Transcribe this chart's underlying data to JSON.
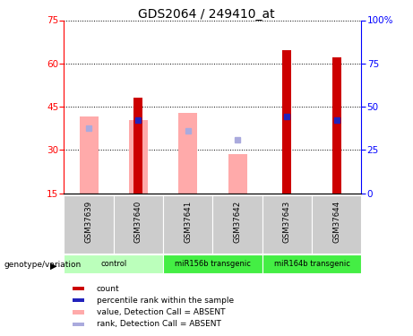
{
  "title": "GDS2064 / 249410_at",
  "samples": [
    "GSM37639",
    "GSM37640",
    "GSM37641",
    "GSM37642",
    "GSM37643",
    "GSM37644"
  ],
  "red_bars": [
    null,
    48.0,
    null,
    null,
    64.5,
    62.0
  ],
  "blue_squares": [
    null,
    40.5,
    null,
    null,
    41.5,
    40.5
  ],
  "pink_bars": [
    41.5,
    40.5,
    43.0,
    28.5,
    null,
    null
  ],
  "light_blue_squares": [
    37.5,
    null,
    36.5,
    33.5,
    null,
    null
  ],
  "ylim_left": [
    15,
    75
  ],
  "ylim_right": [
    0,
    100
  ],
  "yticks_left": [
    15,
    30,
    45,
    60,
    75
  ],
  "yticks_right": [
    0,
    25,
    50,
    75,
    100
  ],
  "ybase": 15,
  "red_color": "#cc0000",
  "blue_color": "#2222bb",
  "pink_color": "#ffaaaa",
  "light_blue_color": "#aaaadd",
  "sample_bg": "#cccccc",
  "group_info": [
    {
      "start": 0,
      "end": 1,
      "label": "control",
      "color": "#bbffbb"
    },
    {
      "start": 2,
      "end": 3,
      "label": "miR156b transgenic",
      "color": "#44ee44"
    },
    {
      "start": 4,
      "end": 5,
      "label": "miR164b transgenic",
      "color": "#44ee44"
    }
  ],
  "legend_items": [
    {
      "color": "#cc0000",
      "label": "count"
    },
    {
      "color": "#2222bb",
      "label": "percentile rank within the sample"
    },
    {
      "color": "#ffaaaa",
      "label": "value, Detection Call = ABSENT"
    },
    {
      "color": "#aaaadd",
      "label": "rank, Detection Call = ABSENT"
    }
  ]
}
